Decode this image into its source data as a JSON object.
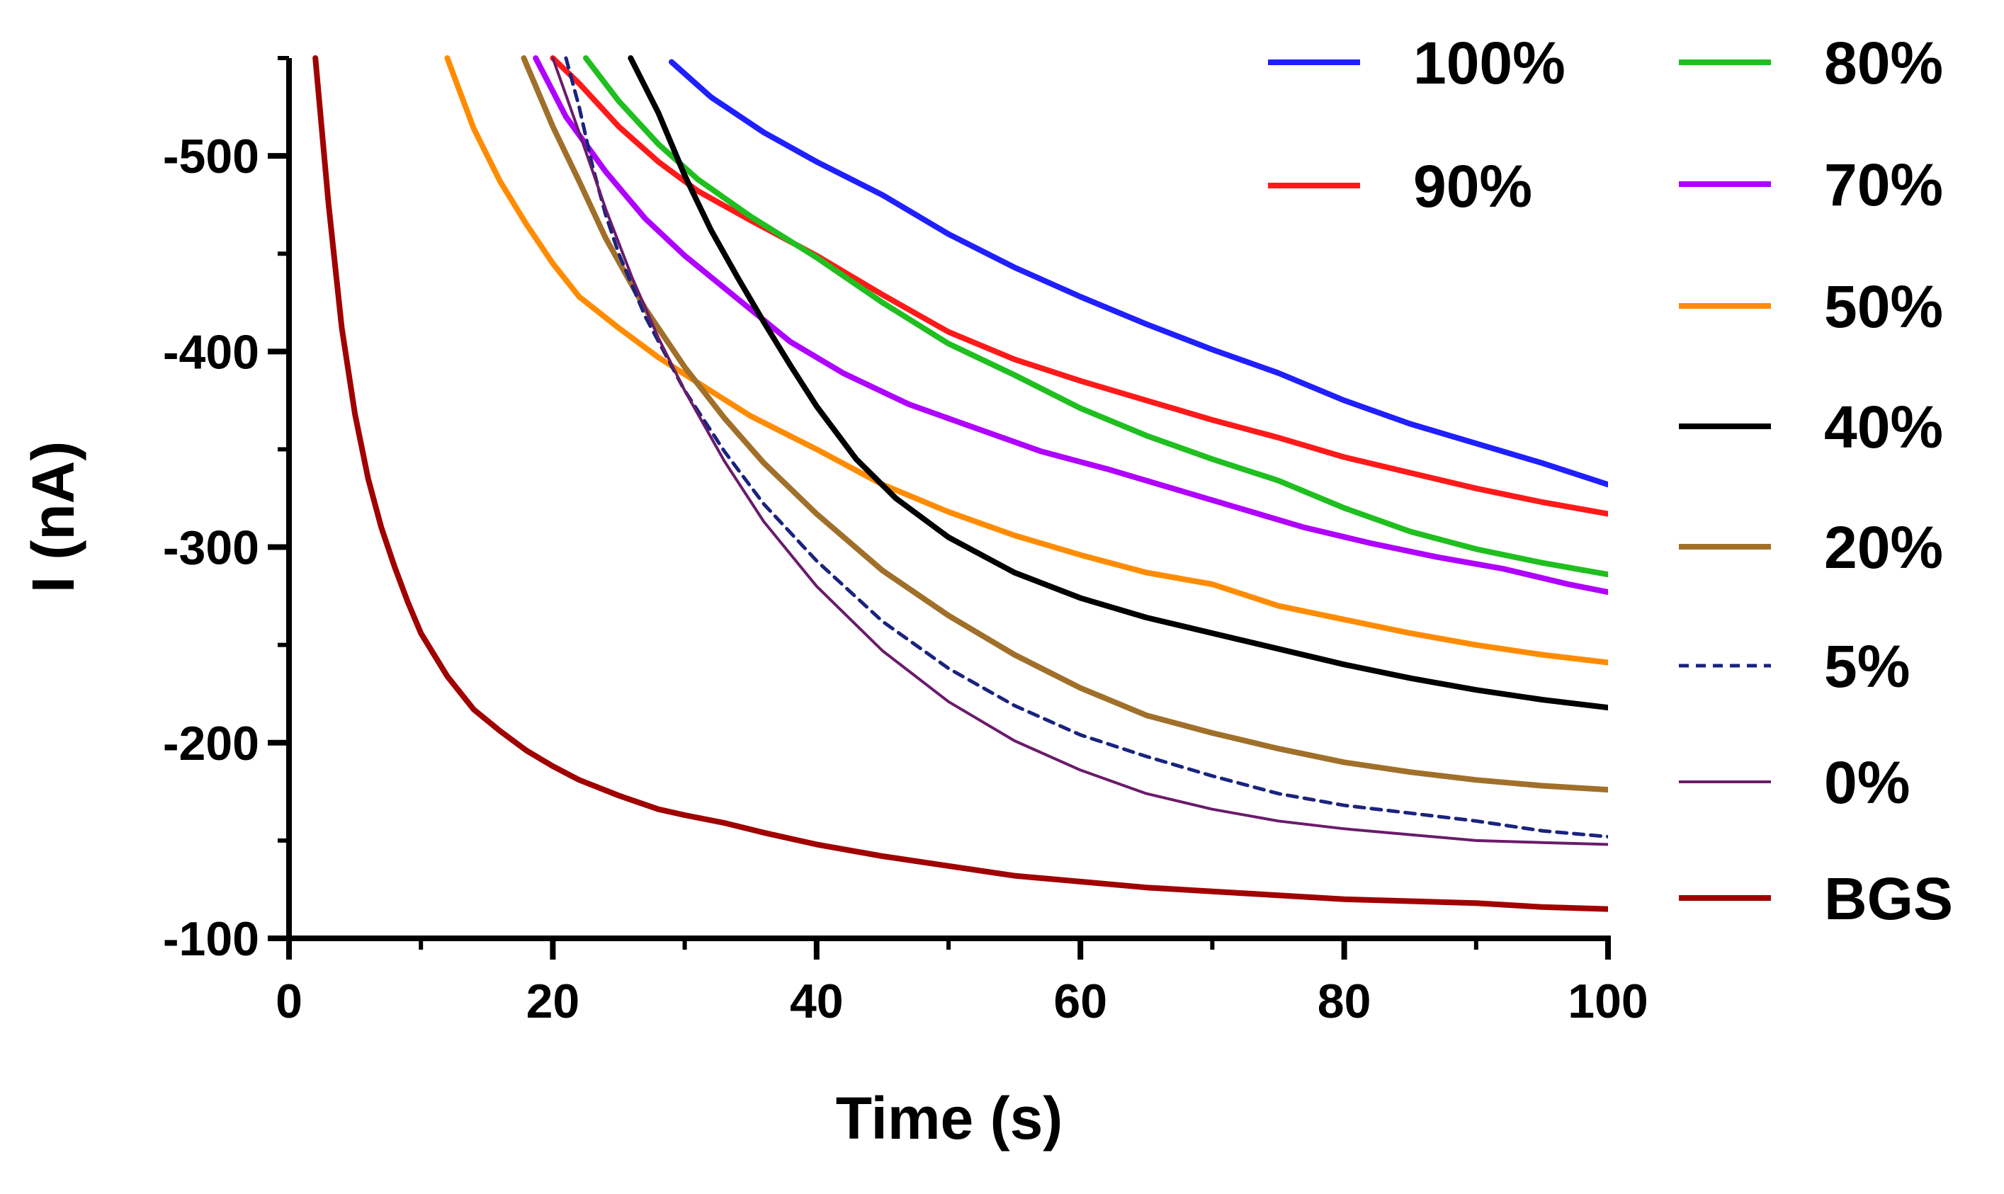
{
  "chart_data": {
    "type": "line",
    "title": "",
    "xlabel": "Time (s)",
    "ylabel": "I (nA)",
    "xlim": [
      0,
      100
    ],
    "ylim": [
      -100,
      -550
    ],
    "y_axis_direction": "more negative upward",
    "xticks": [
      0,
      20,
      40,
      60,
      80,
      100
    ],
    "xtick_labels": [
      "0",
      "20",
      "40",
      "60",
      "80",
      "100"
    ],
    "yticks": [
      -100,
      -200,
      -300,
      -400,
      -500
    ],
    "ytick_labels": [
      "-100",
      "-200",
      "-300",
      "-400",
      "-500"
    ],
    "grid": false,
    "legend_position": "right",
    "series": [
      {
        "name": "100%",
        "color": "#1f1fff",
        "dash": "solid",
        "x": [
          29,
          32,
          36,
          40,
          45,
          50,
          55,
          60,
          65,
          70,
          75,
          80,
          85,
          90,
          95,
          100
        ],
        "y": [
          -548,
          -530,
          -512,
          -497,
          -480,
          -460,
          -443,
          -428,
          -414,
          -401,
          -389,
          -375,
          -363,
          -353,
          -343,
          -332
        ]
      },
      {
        "name": "90%",
        "color": "#ff1a1a",
        "dash": "solid",
        "x": [
          20,
          22,
          25,
          28,
          31,
          35,
          40,
          45,
          50,
          55,
          60,
          65,
          70,
          75,
          80,
          85,
          90,
          95,
          100
        ],
        "y": [
          -550,
          -537,
          -515,
          -497,
          -482,
          -467,
          -449,
          -429,
          -410,
          -396,
          -385,
          -375,
          -365,
          -356,
          -346,
          -338,
          -330,
          -323,
          -317
        ]
      },
      {
        "name": "80%",
        "color": "#1fbf1f",
        "dash": "solid",
        "x": [
          22.5,
          25,
          28,
          31,
          35,
          40,
          45,
          50,
          55,
          60,
          65,
          70,
          75,
          80,
          85,
          90,
          95,
          100
        ],
        "y": [
          -550,
          -528,
          -506,
          -488,
          -469,
          -448,
          -425,
          -404,
          -388,
          -371,
          -357,
          -345,
          -334,
          -320,
          -308,
          -299,
          -292,
          -286
        ]
      },
      {
        "name": "70%",
        "color": "#b000ff",
        "dash": "solid",
        "x": [
          18.7,
          21,
          24,
          27,
          30,
          34,
          38,
          42,
          47,
          52,
          57,
          62,
          67,
          72,
          77,
          82,
          87,
          92,
          97,
          100
        ],
        "y": [
          -550,
          -520,
          -492,
          -468,
          -449,
          -427,
          -405,
          -389,
          -373,
          -361,
          -349,
          -340,
          -330,
          -320,
          -310,
          -302,
          -295,
          -289,
          -281,
          -277
        ]
      },
      {
        "name": "50%",
        "color": "#ff8c00",
        "dash": "solid",
        "x": [
          12,
          14,
          16,
          18,
          20,
          22,
          25,
          28,
          31,
          35,
          40,
          45,
          50,
          55,
          60,
          65,
          70,
          75,
          80,
          85,
          90,
          95,
          100
        ],
        "y": [
          -550,
          -514,
          -487,
          -465,
          -445,
          -428,
          -412,
          -397,
          -384,
          -367,
          -350,
          -332,
          -318,
          -306,
          -296,
          -287,
          -281,
          -270,
          -263,
          -256,
          -250,
          -245,
          -241
        ]
      },
      {
        "name": "40%",
        "color": "#000000",
        "dash": "solid",
        "x": [
          25.9,
          28,
          30,
          32,
          34,
          36,
          38,
          40,
          43,
          46,
          50,
          55,
          60,
          65,
          70,
          75,
          80,
          85,
          90,
          95,
          100
        ],
        "y": [
          -550,
          -522,
          -490,
          -462,
          -438,
          -415,
          -393,
          -372,
          -345,
          -325,
          -305,
          -287,
          -274,
          -264,
          -256,
          -248,
          -240,
          -233,
          -227,
          -222,
          -218
        ]
      },
      {
        "name": "20%",
        "color": "#a0702a",
        "dash": "solid",
        "x": [
          17.8,
          20,
          22,
          24,
          27,
          30,
          33,
          36,
          40,
          45,
          50,
          55,
          60,
          65,
          70,
          75,
          80,
          85,
          90,
          95,
          100
        ],
        "y": [
          -550,
          -515,
          -487,
          -458,
          -422,
          -392,
          -366,
          -343,
          -317,
          -288,
          -265,
          -245,
          -228,
          -214,
          -205,
          -197,
          -190,
          -185,
          -181,
          -178,
          -176
        ]
      },
      {
        "name": "5%",
        "color": "#1a237e",
        "dash": "dashed",
        "x": [
          21,
          22,
          23,
          24,
          25,
          27,
          30,
          33,
          36,
          40,
          45,
          50,
          55,
          60,
          65,
          70,
          75,
          80,
          85,
          90,
          95,
          100
        ],
        "y": [
          -550,
          -525,
          -495,
          -470,
          -450,
          -418,
          -380,
          -349,
          -322,
          -293,
          -262,
          -238,
          -219,
          -204,
          -193,
          -183,
          -174,
          -168,
          -164,
          -160,
          -155,
          -152
        ]
      },
      {
        "name": "0%",
        "color": "#6a1b6a",
        "dash": "solid",
        "x": [
          20,
          22,
          24,
          26,
          28,
          30,
          33,
          36,
          40,
          45,
          50,
          55,
          60,
          65,
          70,
          75,
          80,
          85,
          90,
          95,
          100
        ],
        "y": [
          -550,
          -512,
          -473,
          -438,
          -407,
          -380,
          -344,
          -313,
          -280,
          -247,
          -221,
          -201,
          -186,
          -174,
          -166,
          -160,
          -156,
          -153,
          -150,
          -149,
          -148
        ]
      },
      {
        "name": "BGS",
        "color": "#a00000",
        "dash": "solid",
        "x": [
          2,
          3,
          4,
          5,
          6,
          7,
          8,
          9,
          10,
          12,
          14,
          16,
          18,
          20,
          22,
          25,
          28,
          30,
          33,
          36,
          40,
          45,
          50,
          55,
          60,
          65,
          70,
          75,
          80,
          85,
          90,
          95,
          100
        ],
        "y": [
          -550,
          -475,
          -412,
          -368,
          -335,
          -310,
          -290,
          -272,
          -256,
          -234,
          -217,
          -206,
          -196,
          -188,
          -181,
          -173,
          -166,
          -163,
          -159,
          -154,
          -148,
          -142,
          -137,
          -132,
          -129,
          -126,
          -124,
          -122,
          -120,
          -119,
          -118,
          -116,
          -115
        ]
      }
    ]
  }
}
